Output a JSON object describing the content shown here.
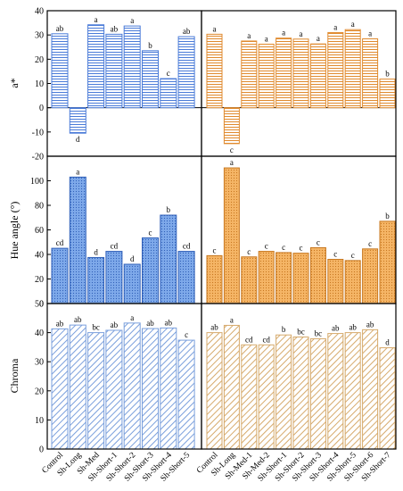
{
  "chart_data": [
    {
      "type": "bar",
      "panel": "left",
      "ylabel": "a*",
      "ylim": [
        -20,
        40
      ],
      "yticks": [
        -20,
        -10,
        0,
        10,
        20,
        30,
        40
      ],
      "categories": [
        "Control",
        "Sh-Long",
        "Sh-Med",
        "Sh-Short-1",
        "Sh-Short-2",
        "Sh-Short-3",
        "Sh-Short-4",
        "Sh-Short-5"
      ],
      "values": [
        30.5,
        -10.5,
        34.2,
        30.3,
        33.7,
        23.5,
        12.0,
        29.3
      ],
      "letters": [
        "ab",
        "d",
        "a",
        "ab",
        "a",
        "b",
        "c",
        "ab"
      ],
      "fill": "#ffffff",
      "stroke": "#4a7bd8",
      "pattern": "horizontal-lines"
    },
    {
      "type": "bar",
      "panel": "right",
      "ylim": [
        -20,
        40
      ],
      "categories": [
        "Control",
        "Sh-Long",
        "Sh-Med-1",
        "Sh-Med-2",
        "Sh-Short-1",
        "Sh-Short-2",
        "Sh-Short-3",
        "Sh-Short-4",
        "Sh-Short-5",
        "Sh-Short-6",
        "Sh-Short-7"
      ],
      "values": [
        30.3,
        -14.8,
        27.5,
        26.2,
        28.7,
        28.3,
        26.3,
        31.0,
        32.2,
        28.4,
        11.8
      ],
      "letters": [
        "a",
        "c",
        "a",
        "a",
        "a",
        "a",
        "a",
        "a",
        "a",
        "a",
        "b"
      ],
      "fill": "#ffffff",
      "stroke": "#e08a2e",
      "pattern": "horizontal-lines"
    },
    {
      "type": "bar",
      "panel": "left",
      "ylabel": "Hue angle (°)",
      "ylim": [
        0,
        120
      ],
      "yticks": [
        0,
        20,
        40,
        60,
        80,
        100
      ],
      "categories": [
        "Control",
        "Sh-Long",
        "Sh-Med",
        "Sh-Short-1",
        "Sh-Short-2",
        "Sh-Short-3",
        "Sh-Short-4",
        "Sh-Short-5"
      ],
      "values": [
        45,
        103,
        37.5,
        42.5,
        32,
        53.5,
        72,
        42.5
      ],
      "letters": [
        "cd",
        "a",
        "d",
        "cd",
        "d",
        "c",
        "b",
        "cd"
      ],
      "fill": "#7ea9ea",
      "stroke": "#2f5fb8",
      "pattern": "dots"
    },
    {
      "type": "bar",
      "panel": "right",
      "ylim": [
        0,
        120
      ],
      "categories": [
        "Control",
        "Sh-Long",
        "Sh-Med-1",
        "Sh-Med-2",
        "Sh-Short-1",
        "Sh-Short-2",
        "Sh-Short-3",
        "Sh-Short-4",
        "Sh-Short-5",
        "Sh-Short-6",
        "Sh-Short-7"
      ],
      "values": [
        39,
        110.5,
        38,
        42.5,
        41.5,
        41,
        45.5,
        36,
        35,
        44.5,
        67
      ],
      "letters": [
        "c",
        "a",
        "c",
        "c",
        "c",
        "c",
        "c",
        "c",
        "c",
        "c",
        "b"
      ],
      "fill": "#f5b566",
      "stroke": "#c7771f",
      "pattern": "dots"
    },
    {
      "type": "bar",
      "panel": "left",
      "ylabel": "Chroma",
      "ylim": [
        0,
        50
      ],
      "yticks": [
        0,
        10,
        20,
        30,
        40,
        50
      ],
      "categories": [
        "Control",
        "Sh-Long",
        "Sh-Med",
        "Sh-Short-1",
        "Sh-Short-2",
        "Sh-Short-3",
        "Sh-Short-4",
        "Sh-Short-5"
      ],
      "values": [
        41.3,
        42.6,
        40.0,
        40.8,
        43.3,
        41.4,
        41.6,
        37.4
      ],
      "letters": [
        "ab",
        "ab",
        "bc",
        "ab",
        "a",
        "ab",
        "ab",
        "c"
      ],
      "fill": "#ffffff",
      "stroke": "#7a9fdc",
      "pattern": "diagonal-lines"
    },
    {
      "type": "bar",
      "panel": "right",
      "ylim": [
        0,
        50
      ],
      "categories": [
        "Control",
        "Sh-Long",
        "Sh-Med-1",
        "Sh-Med-2",
        "Sh-Short-1",
        "Sh-Short-2",
        "Sh-Short-3",
        "Sh-Short-4",
        "Sh-Short-5",
        "Sh-Short-6",
        "Sh-Short-7"
      ],
      "values": [
        40.0,
        42.5,
        35.8,
        35.8,
        39.2,
        38.5,
        37.9,
        39.7,
        40.0,
        41.0,
        34.8
      ],
      "letters": [
        "ab",
        "a",
        "cd",
        "cd",
        "b",
        "bc",
        "bc",
        "ab",
        "ab",
        "ab",
        "d"
      ],
      "fill": "#ffffff",
      "stroke": "#d6aa6c",
      "pattern": "diagonal-lines"
    }
  ]
}
